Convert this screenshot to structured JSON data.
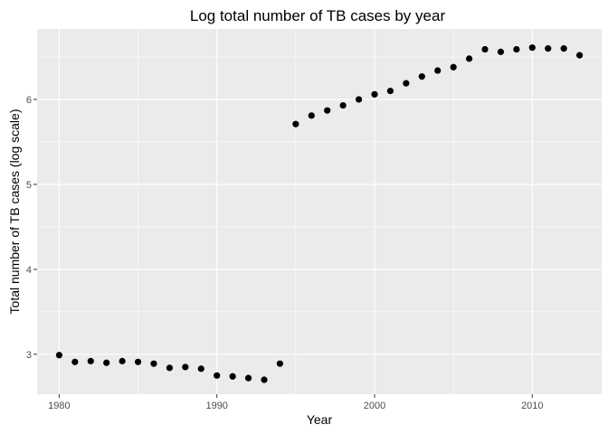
{
  "chart_data": {
    "type": "scatter",
    "title": "Log total number of TB cases by year",
    "xlabel": "Year",
    "ylabel": "Total number of TB cases (log scale)",
    "xlim": [
      1978.6,
      1974.4
    ],
    "ylim": [
      2.53,
      6.83
    ],
    "x_ticks": [
      1980,
      1990,
      2000,
      2010
    ],
    "y_ticks": [
      3,
      4,
      5,
      6
    ],
    "x_tick_labels": [
      "1980",
      "1990",
      "2000",
      "2010"
    ],
    "y_tick_labels": [
      "3",
      "4",
      "5",
      "6"
    ],
    "grid": true,
    "panel_background": "#ebebeb",
    "grid_color": "#ffffff",
    "point_color": "#000000",
    "points": [
      {
        "x": 1980,
        "y": 2.99
      },
      {
        "x": 1981,
        "y": 2.91
      },
      {
        "x": 1982,
        "y": 2.92
      },
      {
        "x": 1983,
        "y": 2.9
      },
      {
        "x": 1984,
        "y": 2.92
      },
      {
        "x": 1985,
        "y": 2.91
      },
      {
        "x": 1986,
        "y": 2.89
      },
      {
        "x": 1987,
        "y": 2.84
      },
      {
        "x": 1988,
        "y": 2.85
      },
      {
        "x": 1989,
        "y": 2.83
      },
      {
        "x": 1990,
        "y": 2.75
      },
      {
        "x": 1991,
        "y": 2.74
      },
      {
        "x": 1992,
        "y": 2.72
      },
      {
        "x": 1993,
        "y": 2.7
      },
      {
        "x": 1994,
        "y": 2.89
      },
      {
        "x": 1995,
        "y": 5.71
      },
      {
        "x": 1996,
        "y": 5.81
      },
      {
        "x": 1997,
        "y": 5.87
      },
      {
        "x": 1998,
        "y": 5.93
      },
      {
        "x": 1999,
        "y": 6.0
      },
      {
        "x": 2000,
        "y": 6.06
      },
      {
        "x": 2001,
        "y": 6.1
      },
      {
        "x": 2002,
        "y": 6.19
      },
      {
        "x": 2003,
        "y": 6.27
      },
      {
        "x": 2004,
        "y": 6.34
      },
      {
        "x": 2005,
        "y": 6.38
      },
      {
        "x": 2006,
        "y": 6.48
      },
      {
        "x": 2007,
        "y": 6.59
      },
      {
        "x": 2008,
        "y": 6.56
      },
      {
        "x": 2009,
        "y": 6.59
      },
      {
        "x": 2010,
        "y": 6.61
      },
      {
        "x": 2011,
        "y": 6.6
      },
      {
        "x": 2012,
        "y": 6.6
      },
      {
        "x": 2013,
        "y": 6.52
      }
    ]
  }
}
